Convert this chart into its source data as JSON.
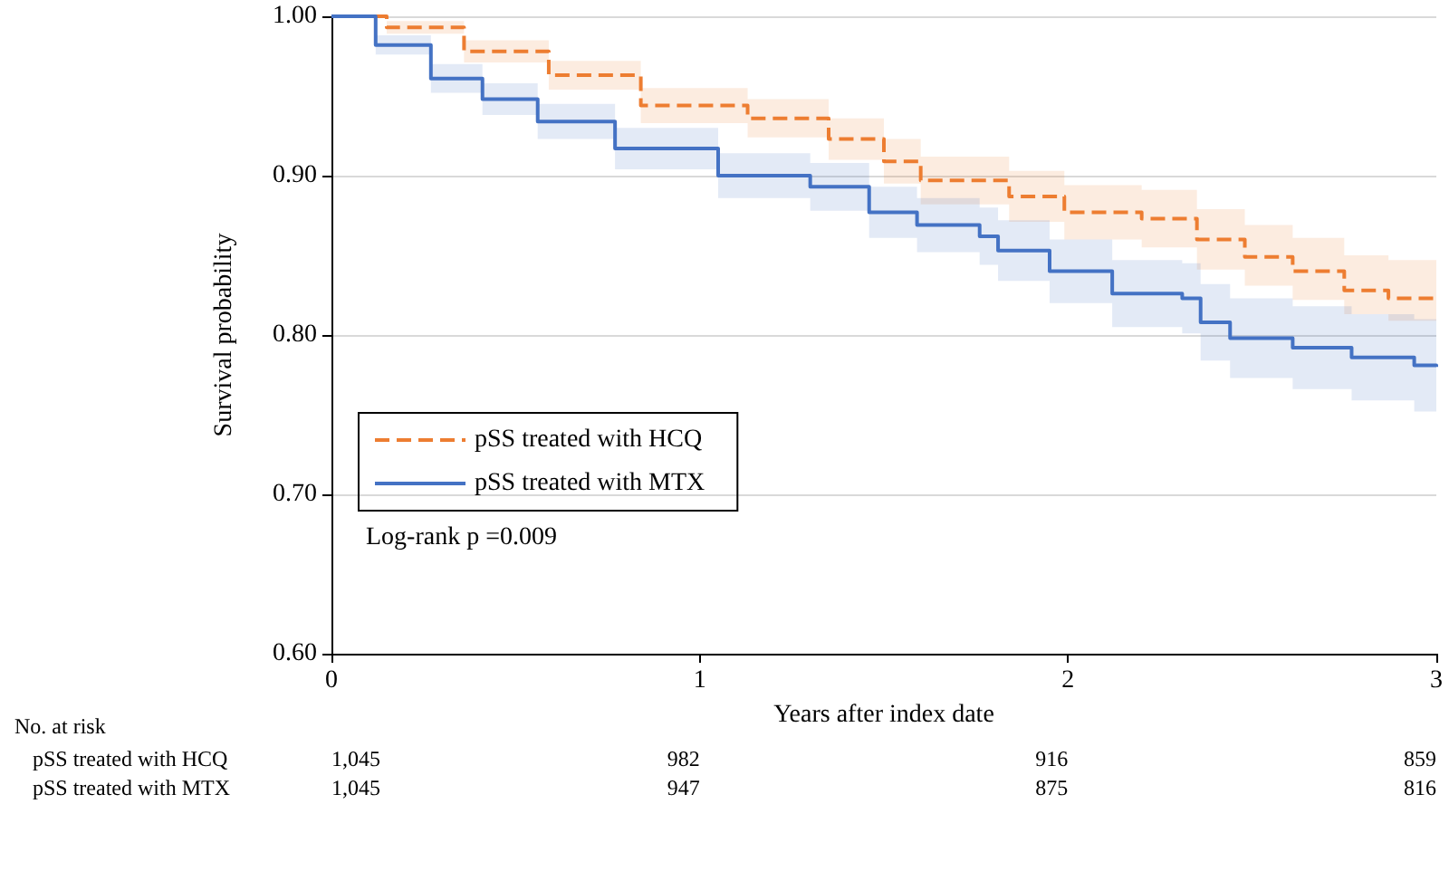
{
  "chart_data": {
    "type": "step",
    "xlabel": "Years after index date",
    "ylabel": "Survival probability",
    "xlim": [
      0,
      3
    ],
    "xticks": [
      0,
      1,
      2,
      3
    ],
    "ylim": [
      0.6,
      1.0
    ],
    "yticks": [
      {
        "value": 0.6,
        "label": "0.60"
      },
      {
        "value": 0.7,
        "label": "0.70"
      },
      {
        "value": 0.8,
        "label": "0.80"
      },
      {
        "value": 0.9,
        "label": "0.90"
      },
      {
        "value": 1.0,
        "label": "1.00"
      }
    ],
    "grid": "y",
    "legend": "bottom left",
    "marker": "none",
    "series": [
      {
        "name": "pSS treated with HCQ",
        "color": "#ed7d31",
        "line_style": "dashed",
        "x": [
          0,
          0.15,
          0.36,
          0.59,
          0.84,
          1.13,
          1.35,
          1.5,
          1.6,
          1.84,
          1.99,
          2.2,
          2.35,
          2.48,
          2.61,
          2.75,
          2.87,
          3
        ],
        "values": [
          1.0,
          0.993,
          0.978,
          0.963,
          0.944,
          0.936,
          0.923,
          0.909,
          0.897,
          0.887,
          0.877,
          0.873,
          0.86,
          0.849,
          0.84,
          0.828,
          0.823,
          0.823
        ],
        "upper": [
          1.0,
          0.997,
          0.985,
          0.972,
          0.955,
          0.948,
          0.936,
          0.923,
          0.912,
          0.903,
          0.894,
          0.891,
          0.879,
          0.869,
          0.861,
          0.85,
          0.847,
          0.849
        ],
        "lower": [
          1.0,
          0.989,
          0.971,
          0.954,
          0.933,
          0.924,
          0.91,
          0.895,
          0.882,
          0.871,
          0.86,
          0.855,
          0.841,
          0.831,
          0.822,
          0.813,
          0.809,
          0.809
        ]
      },
      {
        "name": "pSS treated with MTX",
        "color": "#4472c4",
        "line_style": "solid",
        "x": [
          0,
          0.12,
          0.27,
          0.41,
          0.56,
          0.77,
          1.05,
          1.3,
          1.46,
          1.59,
          1.76,
          1.81,
          1.95,
          2.12,
          2.31,
          2.36,
          2.44,
          2.61,
          2.77,
          2.94,
          3
        ],
        "values": [
          1.0,
          0.982,
          0.961,
          0.948,
          0.934,
          0.917,
          0.9,
          0.893,
          0.877,
          0.869,
          0.862,
          0.853,
          0.84,
          0.826,
          0.823,
          0.808,
          0.798,
          0.792,
          0.786,
          0.781,
          0.78
        ],
        "upper": [
          1.0,
          0.988,
          0.97,
          0.958,
          0.945,
          0.93,
          0.914,
          0.908,
          0.893,
          0.886,
          0.88,
          0.872,
          0.86,
          0.847,
          0.845,
          0.832,
          0.823,
          0.818,
          0.813,
          0.81,
          0.81
        ],
        "lower": [
          1.0,
          0.976,
          0.952,
          0.938,
          0.923,
          0.904,
          0.886,
          0.878,
          0.861,
          0.852,
          0.844,
          0.834,
          0.82,
          0.805,
          0.801,
          0.784,
          0.773,
          0.766,
          0.759,
          0.752,
          0.75
        ]
      }
    ],
    "annotations": [
      "Log-rank p =0.009",
      "No. at risk",
      "pSS treated with HCQ",
      "1,045",
      "982",
      "916",
      "859",
      "pSS treated with MTX",
      "1,045",
      "947",
      "875",
      "816"
    ]
  }
}
